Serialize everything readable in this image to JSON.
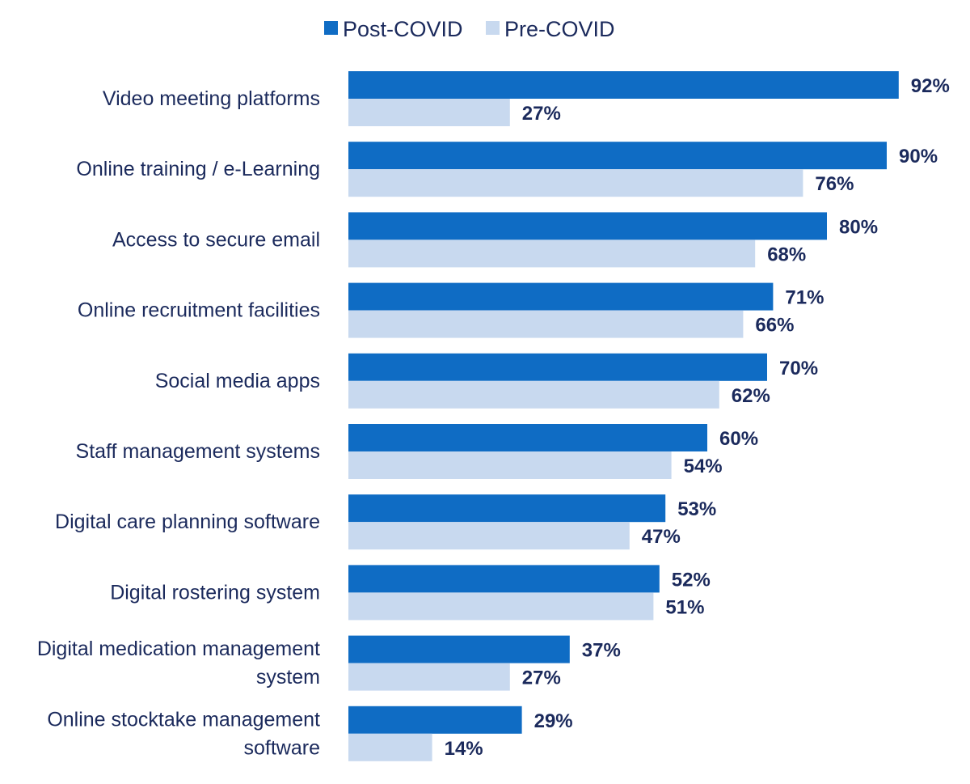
{
  "chart_data": {
    "type": "bar",
    "orientation": "horizontal",
    "categories": [
      "Video meeting platforms",
      "Online training / e-Learning",
      "Access to secure email",
      "Online recruitment facilities",
      "Social media apps",
      "Staff management systems",
      "Digital care planning software",
      "Digital rostering system",
      "Digital medication management system",
      "Online stocktake management software"
    ],
    "category_lines": [
      [
        "Video meeting platforms"
      ],
      [
        "Online training / e-Learning"
      ],
      [
        "Access to secure email"
      ],
      [
        "Online recruitment facilities"
      ],
      [
        "Social media apps"
      ],
      [
        "Staff management systems"
      ],
      [
        "Digital care planning software"
      ],
      [
        "Digital rostering system"
      ],
      [
        "Digital medication management",
        "system"
      ],
      [
        "Online stocktake management",
        "software"
      ]
    ],
    "series": [
      {
        "name": "Post-COVID",
        "color": "#0f6cc4",
        "values": [
          92,
          90,
          80,
          71,
          70,
          60,
          53,
          52,
          37,
          29
        ],
        "labels": [
          "92%",
          "90%",
          "80%",
          "71%",
          "70%",
          "60%",
          "53%",
          "52%",
          "37%",
          "29%"
        ]
      },
      {
        "name": "Pre-COVID",
        "color": "#c8d9ef",
        "values": [
          27,
          76,
          68,
          66,
          62,
          54,
          47,
          51,
          27,
          14
        ],
        "labels": [
          "27%",
          "76%",
          "68%",
          "66%",
          "62%",
          "54%",
          "47%",
          "51%",
          "27%",
          "14%"
        ]
      }
    ],
    "xlim": [
      0,
      100
    ],
    "grid": false,
    "legend_position": "top-center",
    "text_color": "#1b2a5c"
  }
}
